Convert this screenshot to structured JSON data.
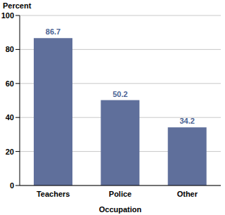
{
  "chart_data": {
    "type": "bar",
    "ylabel": "Percent",
    "xlabel": "Occupation",
    "categories": [
      "Teachers",
      "Police",
      "Other"
    ],
    "values": [
      86.7,
      50.2,
      34.2
    ],
    "color": "#5f6f9b",
    "ylim": [
      0,
      100
    ],
    "yticks": [
      0,
      20,
      40,
      60,
      80,
      100
    ],
    "grid": true,
    "data_labels": true
  }
}
